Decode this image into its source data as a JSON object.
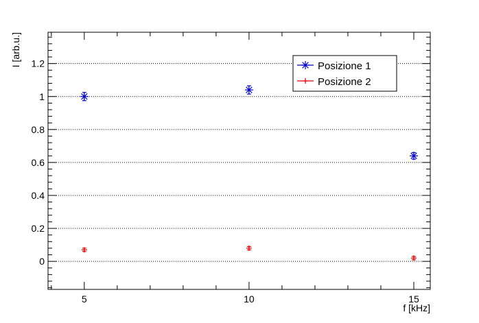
{
  "chart_data": {
    "type": "scatter",
    "xlabel": "f [kHz]",
    "ylabel": "I [arb.u.]",
    "xlim": [
      3.9,
      15.5
    ],
    "ylim": [
      -0.17,
      1.39
    ],
    "x_ticks": [
      {
        "value": 5,
        "label": "5"
      },
      {
        "value": 10,
        "label": "10"
      },
      {
        "value": 15,
        "label": "15"
      }
    ],
    "y_ticks": [
      {
        "value": 0,
        "label": "0"
      },
      {
        "value": 0.2,
        "label": "0.2"
      },
      {
        "value": 0.4,
        "label": "0.4"
      },
      {
        "value": 0.6,
        "label": "0.6"
      },
      {
        "value": 0.8,
        "label": "0.8"
      },
      {
        "value": 1,
        "label": "1"
      },
      {
        "value": 1.2,
        "label": "1.2"
      }
    ],
    "grid": {
      "x": false,
      "y": true
    },
    "legend_position": "top-right",
    "series": [
      {
        "name": "Posizione 1",
        "color": "#0000cc",
        "marker": "asterisk",
        "points": [
          {
            "x": 5,
            "y": 1.0,
            "err": 0.025
          },
          {
            "x": 10,
            "y": 1.04,
            "err": 0.025
          },
          {
            "x": 15,
            "y": 0.64,
            "err": 0.02
          }
        ]
      },
      {
        "name": "Posizione 2",
        "color": "#dd0000",
        "marker": "plus",
        "points": [
          {
            "x": 5,
            "y": 0.07,
            "err": 0.01
          },
          {
            "x": 10,
            "y": 0.08,
            "err": 0.01
          },
          {
            "x": 15,
            "y": 0.02,
            "err": 0.01
          }
        ]
      }
    ]
  }
}
